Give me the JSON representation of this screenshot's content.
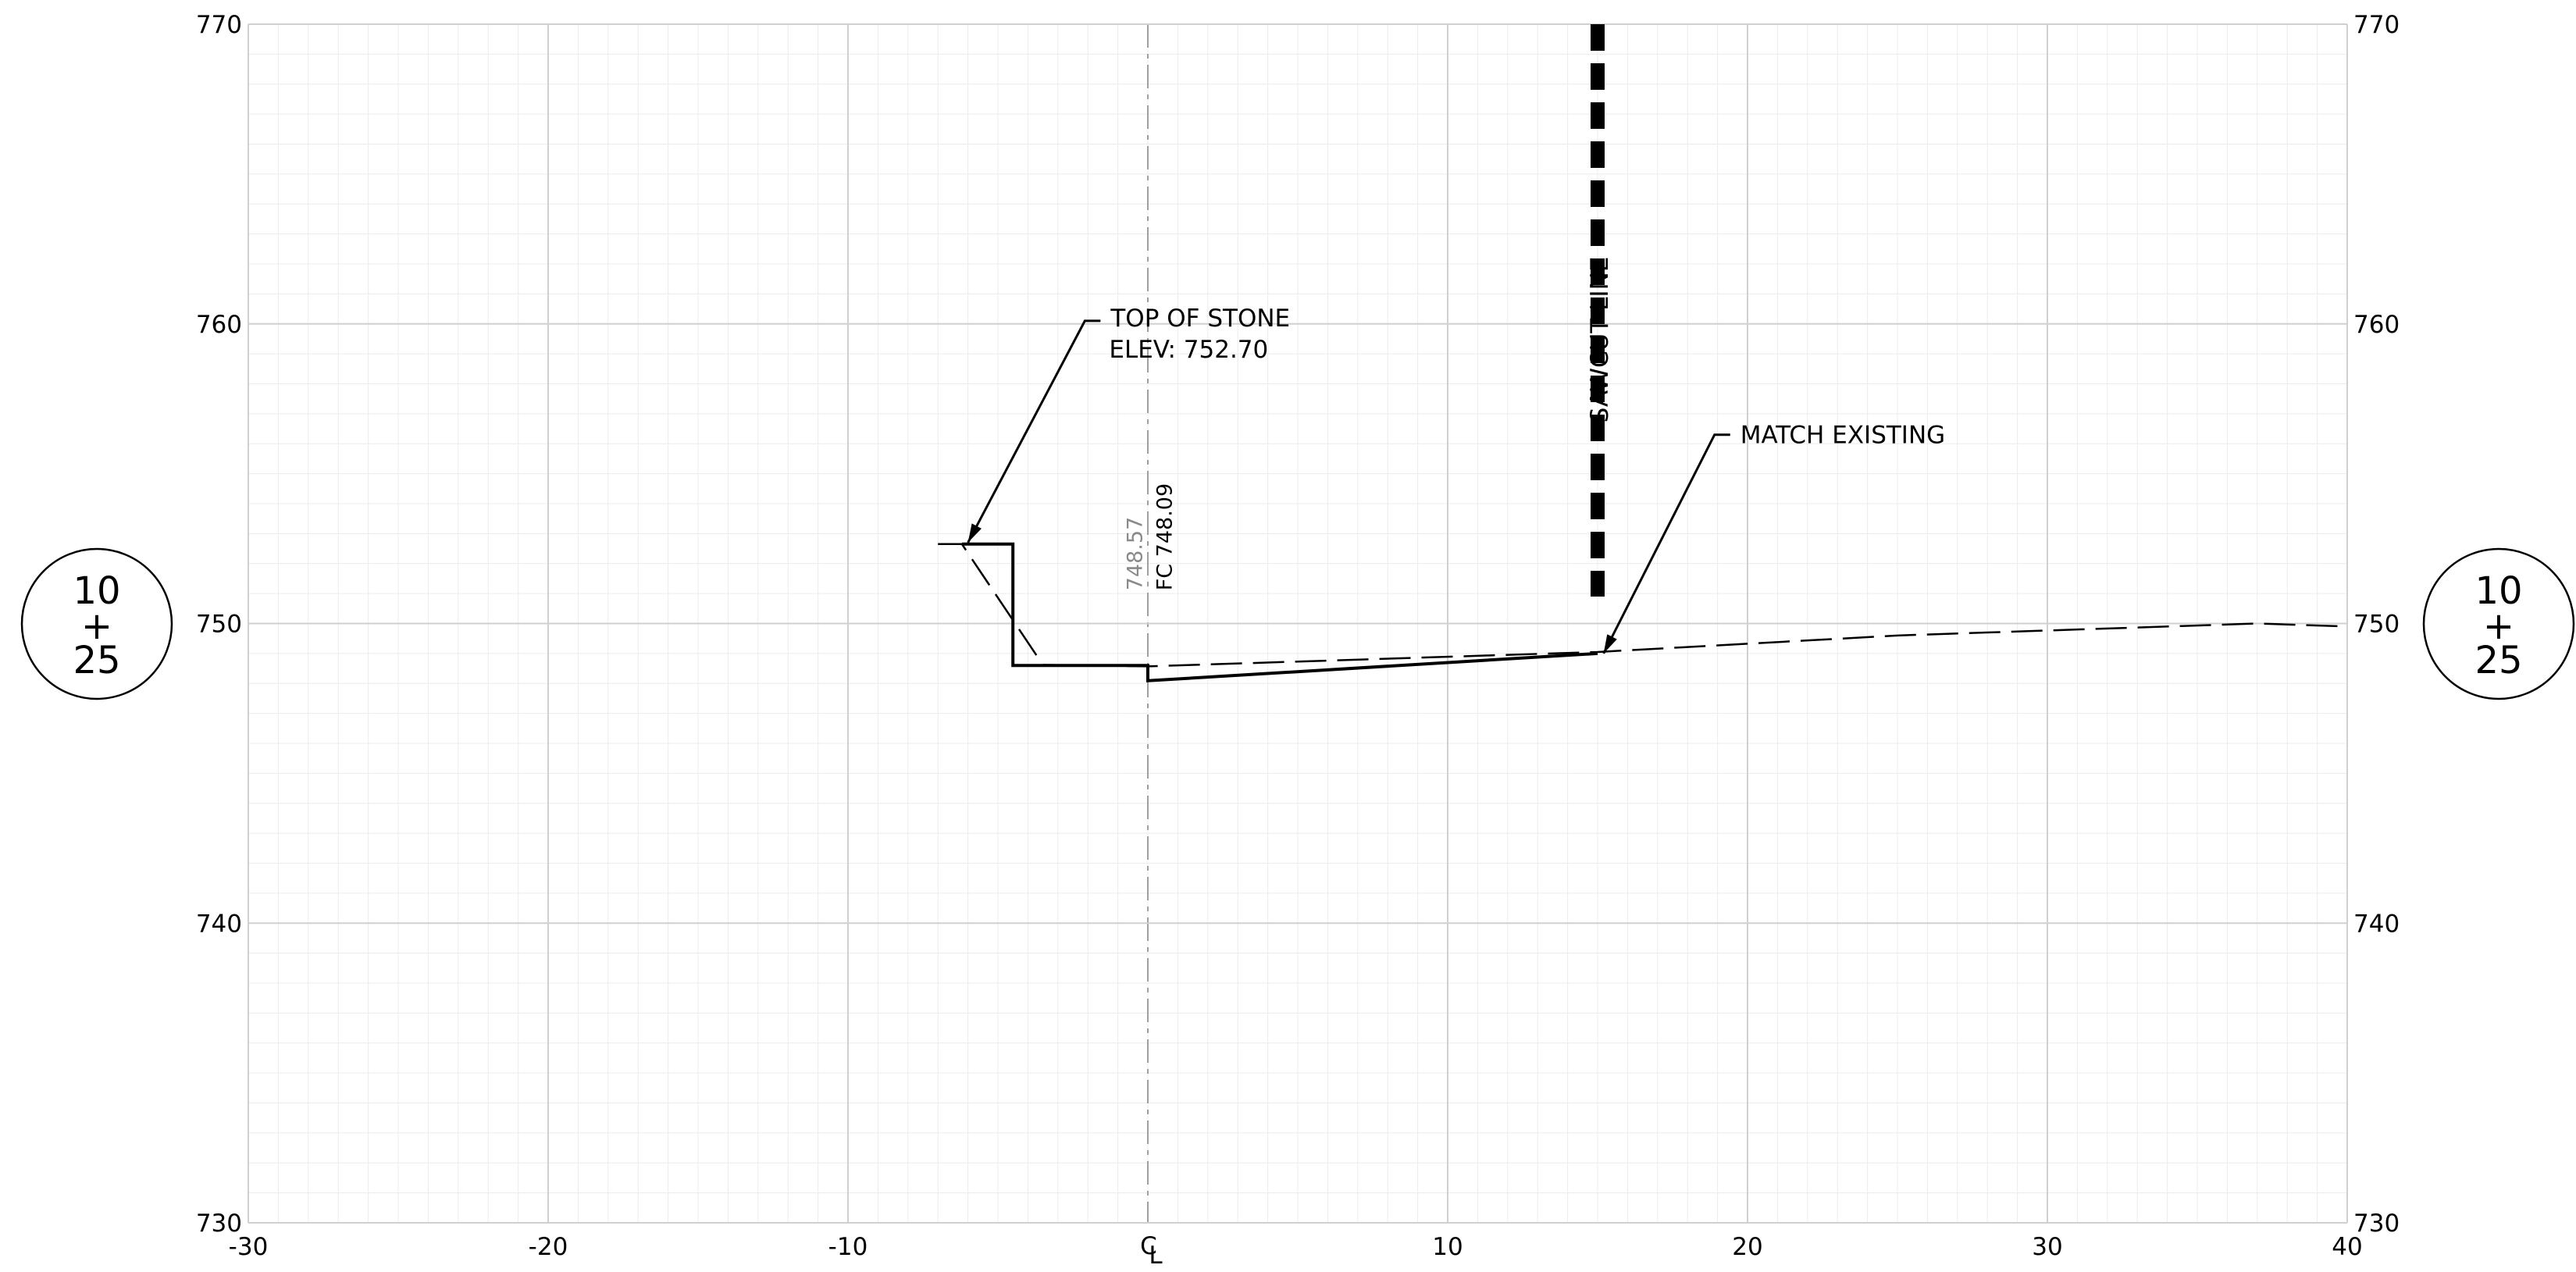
{
  "station": {
    "top": "10",
    "plus": "+",
    "bottom": "25"
  },
  "axes": {
    "x_min": -30,
    "x_max": 40,
    "y_min": 730,
    "y_max": 770,
    "x_ticks": [
      {
        "value": -30,
        "label": "-30"
      },
      {
        "value": -20,
        "label": "-20"
      },
      {
        "value": -10,
        "label": "-10"
      },
      {
        "value": 0,
        "label": "0"
      },
      {
        "value": 10,
        "label": "10"
      },
      {
        "value": 20,
        "label": "20"
      },
      {
        "value": 30,
        "label": "30"
      },
      {
        "value": 40,
        "label": "40"
      }
    ],
    "y_ticks": [
      {
        "value": 730,
        "label": "730"
      },
      {
        "value": 740,
        "label": "740"
      },
      {
        "value": 750,
        "label": "750"
      },
      {
        "value": 760,
        "label": "760"
      },
      {
        "value": 770,
        "label": "770"
      }
    ],
    "centerline_symbol": "L",
    "centerline_over": "C"
  },
  "profiles": {
    "proposed": [
      [
        -6.2,
        752.65
      ],
      [
        -4.5,
        752.65
      ],
      [
        -4.5,
        748.6
      ],
      [
        0.0,
        748.6
      ],
      [
        0.0,
        748.09
      ],
      [
        15.0,
        749.0
      ]
    ],
    "existing": [
      [
        -7.0,
        752.65
      ],
      [
        -6.2,
        752.65
      ],
      [
        -3.5,
        748.62
      ],
      [
        0.0,
        748.57
      ],
      [
        15.0,
        749.05
      ],
      [
        25.0,
        749.6
      ],
      [
        37.0,
        750.0
      ],
      [
        40.0,
        749.9
      ]
    ]
  },
  "annotations": {
    "top_of_stone_line1": "TOP OF STONE",
    "top_of_stone_line2": "ELEV: 752.70",
    "top_of_stone_point": [
      -6.0,
      752.7
    ],
    "top_of_stone_elbow": [
      -2.1,
      760.1
    ],
    "match_existing": "MATCH EXISTING",
    "match_existing_point": [
      15.2,
      749.0
    ],
    "match_existing_elbow": [
      18.9,
      756.3
    ],
    "sawcut_line": "SAWCUT LINE",
    "sawcut_x": 15.0,
    "existing_elev": "748.57",
    "fc_elev": "FC 748.09"
  }
}
